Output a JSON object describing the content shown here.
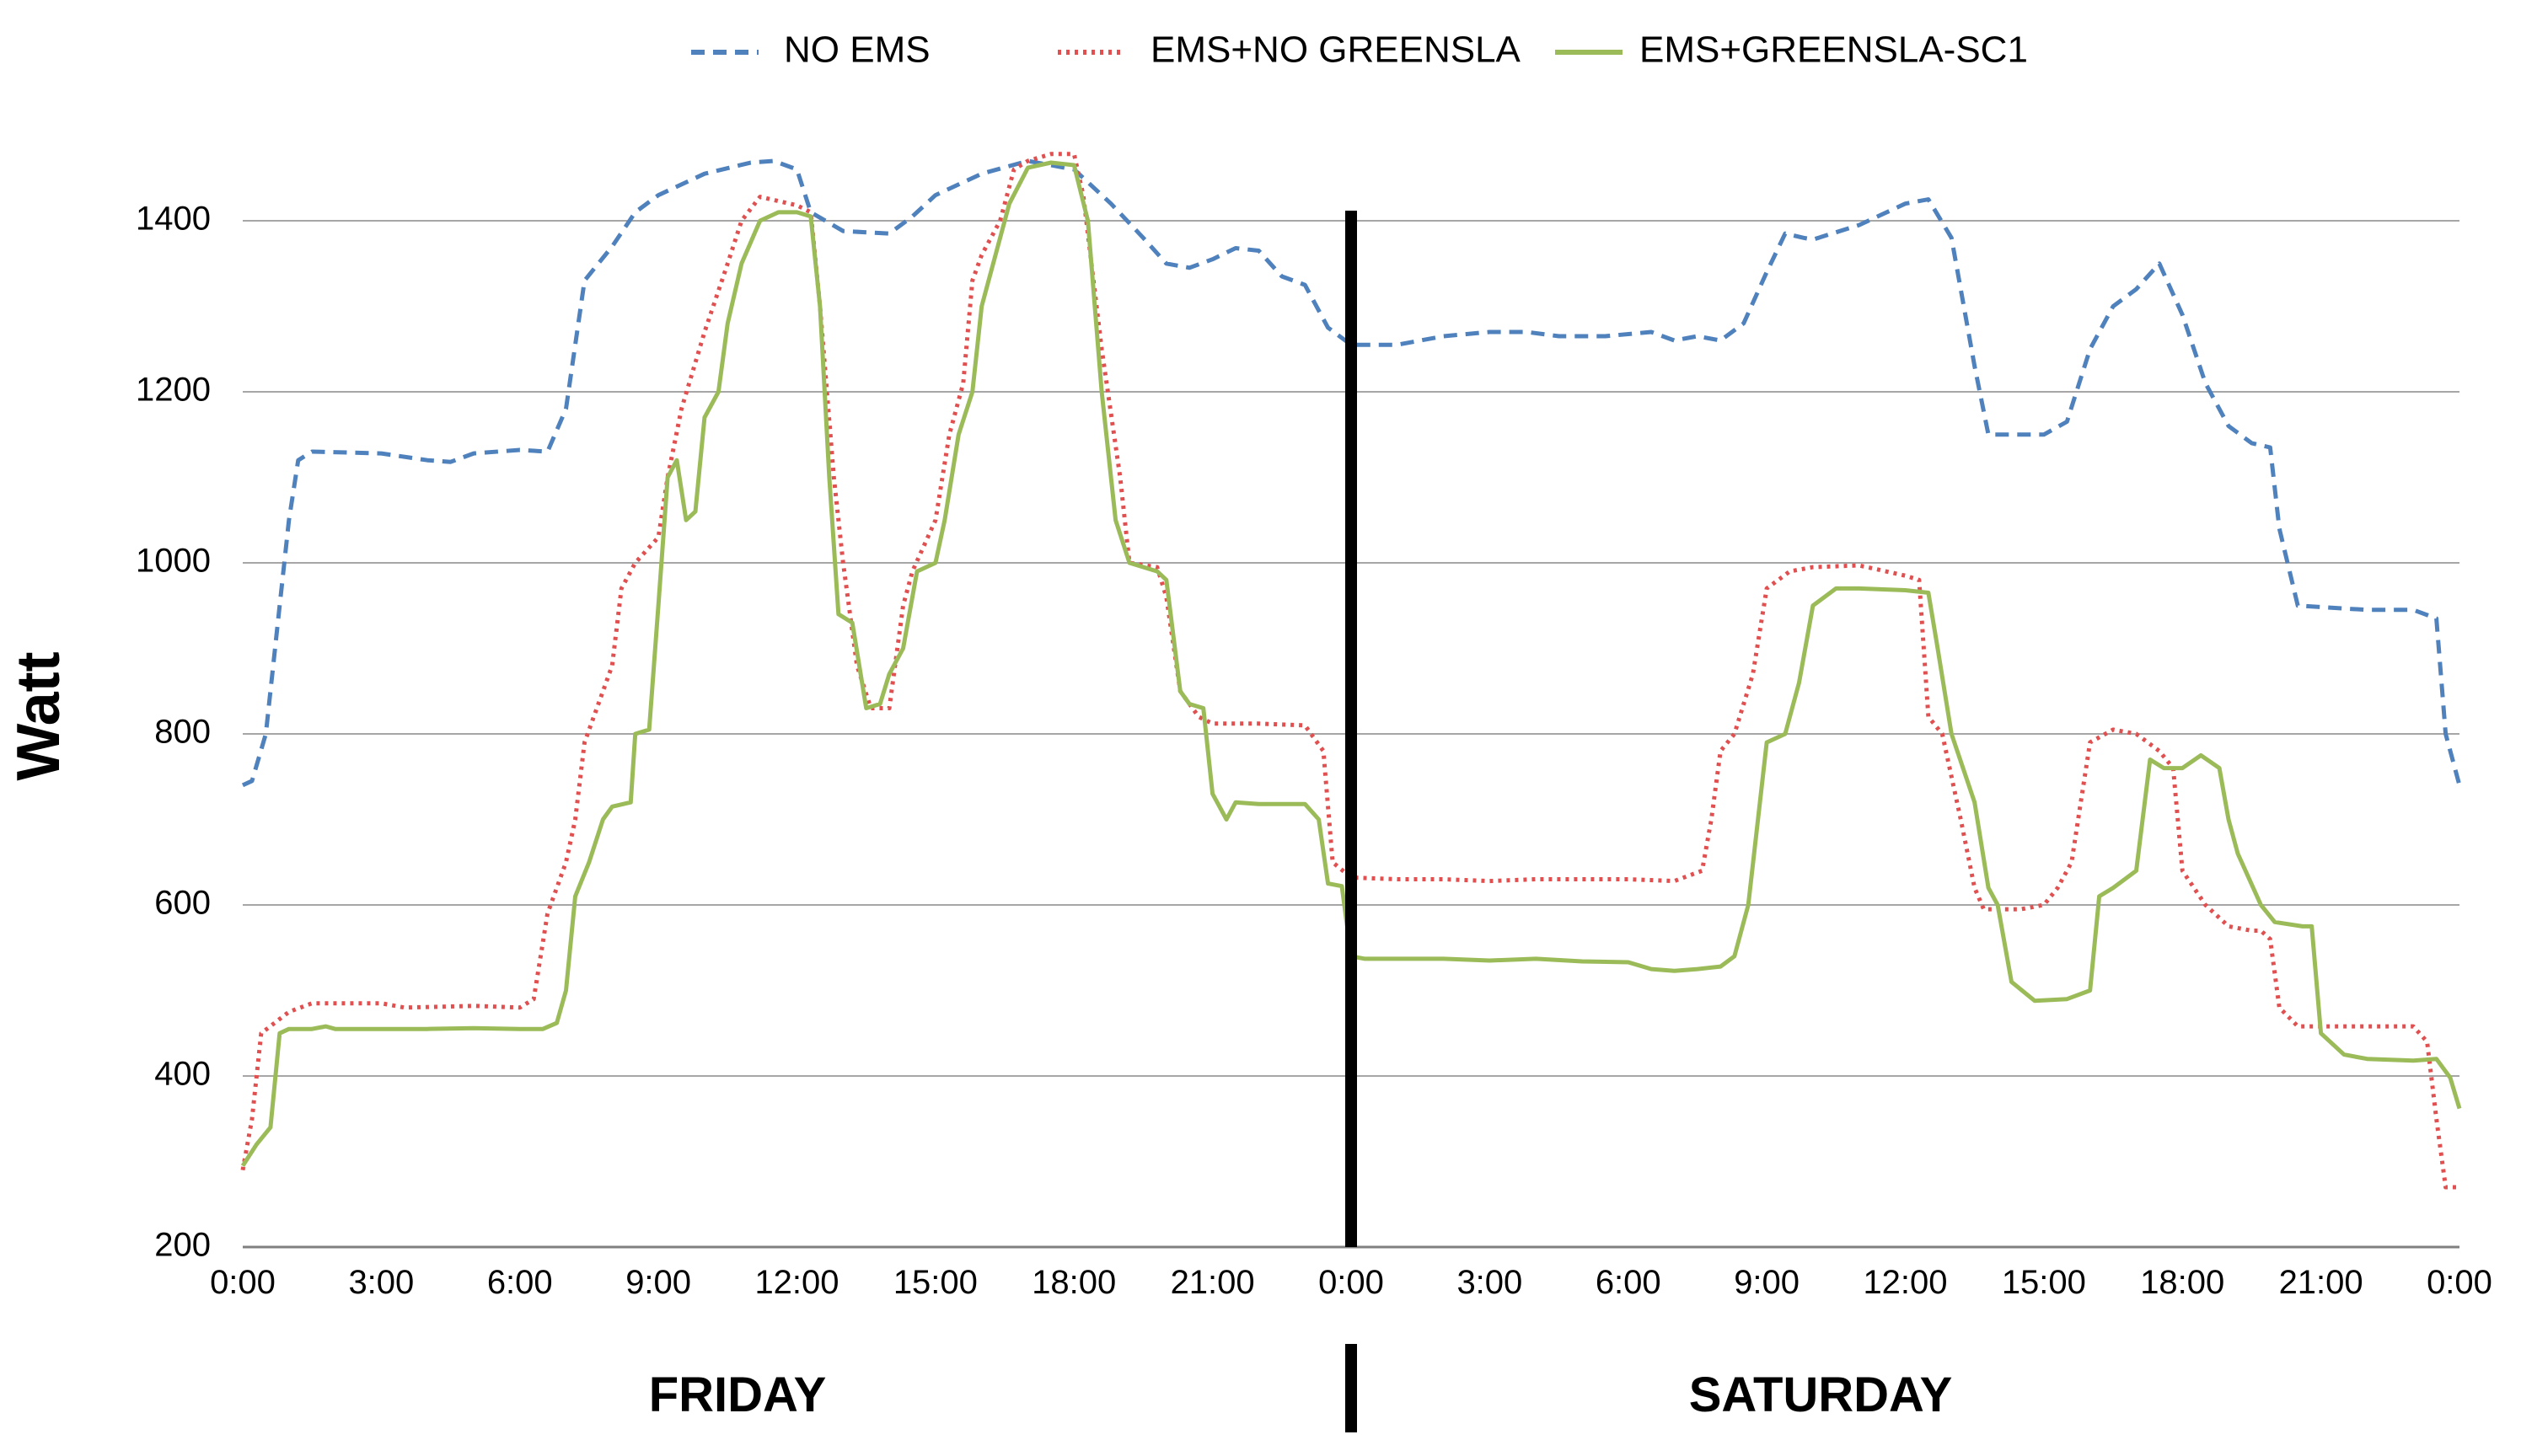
{
  "chart_data": {
    "type": "line",
    "ylabel": "Watt",
    "xlabel": "",
    "ylim": [
      200,
      1500
    ],
    "yticks": [
      200,
      400,
      600,
      800,
      1000,
      1200,
      1400
    ],
    "xlim": [
      0,
      48
    ],
    "xtick_hours": [
      0,
      3,
      6,
      9,
      12,
      15,
      18,
      21,
      24,
      27,
      30,
      33,
      36,
      39,
      42,
      45,
      48
    ],
    "xtick_labels": [
      "0:00",
      "3:00",
      "6:00",
      "9:00",
      "12:00",
      "15:00",
      "18:00",
      "21:00",
      "0:00",
      "3:00",
      "6:00",
      "9:00",
      "12:00",
      "15:00",
      "18:00",
      "21:00",
      "0:00"
    ],
    "day_labels": [
      "FRIDAY",
      "SATURDAY"
    ],
    "divider_hour": 24,
    "grid": true,
    "legend_position": "top",
    "series": [
      {
        "name": "NO EMS",
        "color": "#4F81BD",
        "style": "dashed",
        "points": [
          [
            0,
            740
          ],
          [
            0.2,
            745
          ],
          [
            0.5,
            800
          ],
          [
            0.8,
            950
          ],
          [
            1.0,
            1050
          ],
          [
            1.2,
            1120
          ],
          [
            1.5,
            1130
          ],
          [
            3,
            1128
          ],
          [
            4,
            1120
          ],
          [
            4.5,
            1118
          ],
          [
            5,
            1128
          ],
          [
            6,
            1132
          ],
          [
            6.6,
            1130
          ],
          [
            7.0,
            1180
          ],
          [
            7.4,
            1330
          ],
          [
            8,
            1370
          ],
          [
            8.5,
            1410
          ],
          [
            9,
            1430
          ],
          [
            10,
            1455
          ],
          [
            11,
            1468
          ],
          [
            11.5,
            1470
          ],
          [
            12,
            1460
          ],
          [
            12.3,
            1410
          ],
          [
            13,
            1388
          ],
          [
            14,
            1385
          ],
          [
            14.5,
            1405
          ],
          [
            15,
            1430
          ],
          [
            16,
            1455
          ],
          [
            17,
            1470
          ],
          [
            18,
            1460
          ],
          [
            18.8,
            1420
          ],
          [
            19.5,
            1380
          ],
          [
            20,
            1350
          ],
          [
            20.5,
            1345
          ],
          [
            21,
            1355
          ],
          [
            21.5,
            1368
          ],
          [
            22,
            1365
          ],
          [
            22.5,
            1335
          ],
          [
            23,
            1325
          ],
          [
            23.5,
            1275
          ],
          [
            24,
            1255
          ],
          [
            25,
            1255
          ],
          [
            26,
            1265
          ],
          [
            27,
            1270
          ],
          [
            27.8,
            1270
          ],
          [
            28.5,
            1265
          ],
          [
            29.5,
            1265
          ],
          [
            30.5,
            1270
          ],
          [
            31,
            1260
          ],
          [
            31.5,
            1265
          ],
          [
            32,
            1260
          ],
          [
            32.5,
            1280
          ],
          [
            33,
            1340
          ],
          [
            33.4,
            1385
          ],
          [
            33.8,
            1380
          ],
          [
            34,
            1378
          ],
          [
            35,
            1395
          ],
          [
            36,
            1420
          ],
          [
            36.5,
            1425
          ],
          [
            37,
            1380
          ],
          [
            37.5,
            1230
          ],
          [
            37.8,
            1150
          ],
          [
            39,
            1150
          ],
          [
            39.5,
            1165
          ],
          [
            40,
            1250
          ],
          [
            40.5,
            1300
          ],
          [
            41,
            1320
          ],
          [
            41.5,
            1350
          ],
          [
            42,
            1290
          ],
          [
            42.5,
            1210
          ],
          [
            43,
            1160
          ],
          [
            43.5,
            1140
          ],
          [
            43.9,
            1135
          ],
          [
            44.1,
            1040
          ],
          [
            44.5,
            950
          ],
          [
            46,
            945
          ],
          [
            47,
            945
          ],
          [
            47.5,
            935
          ],
          [
            47.7,
            800
          ],
          [
            48,
            740
          ]
        ]
      },
      {
        "name": "EMS+NO GREENSLA",
        "color": "#E05050",
        "style": "dotted",
        "points": [
          [
            0,
            290
          ],
          [
            0.2,
            350
          ],
          [
            0.4,
            450
          ],
          [
            1,
            475
          ],
          [
            1.5,
            485
          ],
          [
            3,
            485
          ],
          [
            3.5,
            480
          ],
          [
            5,
            482
          ],
          [
            6,
            480
          ],
          [
            6.3,
            490
          ],
          [
            6.6,
            590
          ],
          [
            7,
            650
          ],
          [
            7.2,
            700
          ],
          [
            7.4,
            790
          ],
          [
            7.8,
            850
          ],
          [
            8,
            880
          ],
          [
            8.2,
            970
          ],
          [
            8.5,
            1000
          ],
          [
            9,
            1030
          ],
          [
            9.2,
            1100
          ],
          [
            9.5,
            1180
          ],
          [
            10,
            1270
          ],
          [
            10.5,
            1350
          ],
          [
            10.8,
            1400
          ],
          [
            11.2,
            1428
          ],
          [
            12,
            1418
          ],
          [
            12.3,
            1410
          ],
          [
            12.5,
            1300
          ],
          [
            12.8,
            1100
          ],
          [
            13,
            1000
          ],
          [
            13.3,
            880
          ],
          [
            13.6,
            830
          ],
          [
            14,
            830
          ],
          [
            14.3,
            950
          ],
          [
            14.5,
            990
          ],
          [
            15,
            1050
          ],
          [
            15.3,
            1150
          ],
          [
            15.6,
            1210
          ],
          [
            15.8,
            1330
          ],
          [
            16,
            1360
          ],
          [
            16.4,
            1400
          ],
          [
            16.7,
            1460
          ],
          [
            17,
            1470
          ],
          [
            17.5,
            1478
          ],
          [
            18,
            1478
          ],
          [
            18.2,
            1430
          ],
          [
            18.6,
            1250
          ],
          [
            19,
            1100
          ],
          [
            19.2,
            1000
          ],
          [
            19.8,
            995
          ],
          [
            20,
            960
          ],
          [
            20.3,
            850
          ],
          [
            20.7,
            820
          ],
          [
            21,
            812
          ],
          [
            22,
            812
          ],
          [
            23,
            810
          ],
          [
            23.4,
            780
          ],
          [
            23.6,
            650
          ],
          [
            24,
            632
          ],
          [
            25,
            630
          ],
          [
            26,
            630
          ],
          [
            27,
            628
          ],
          [
            28,
            630
          ],
          [
            29,
            630
          ],
          [
            30,
            630
          ],
          [
            31,
            628
          ],
          [
            31.6,
            640
          ],
          [
            31.8,
            700
          ],
          [
            32,
            780
          ],
          [
            32.3,
            800
          ],
          [
            32.7,
            870
          ],
          [
            33,
            970
          ],
          [
            33.5,
            990
          ],
          [
            34,
            995
          ],
          [
            35,
            997
          ],
          [
            36,
            985
          ],
          [
            36.3,
            980
          ],
          [
            36.5,
            820
          ],
          [
            36.8,
            800
          ],
          [
            37.2,
            700
          ],
          [
            37.5,
            620
          ],
          [
            37.7,
            595
          ],
          [
            38.5,
            595
          ],
          [
            39,
            600
          ],
          [
            39.3,
            620
          ],
          [
            39.6,
            650
          ],
          [
            39.8,
            720
          ],
          [
            40,
            790
          ],
          [
            40.5,
            805
          ],
          [
            41,
            800
          ],
          [
            41.5,
            780
          ],
          [
            41.8,
            760
          ],
          [
            42,
            640
          ],
          [
            42.5,
            600
          ],
          [
            43,
            575
          ],
          [
            43.5,
            570
          ],
          [
            43.7,
            570
          ],
          [
            43.9,
            560
          ],
          [
            44.1,
            480
          ],
          [
            44.5,
            458
          ],
          [
            45.5,
            458
          ],
          [
            46.5,
            458
          ],
          [
            47,
            458
          ],
          [
            47.3,
            440
          ],
          [
            47.5,
            350
          ],
          [
            47.7,
            270
          ],
          [
            48,
            270
          ]
        ]
      },
      {
        "name": "EMS+GREENSLA-SC1",
        "color": "#9BBB59",
        "style": "solid",
        "points": [
          [
            0,
            295
          ],
          [
            0.3,
            320
          ],
          [
            0.6,
            340
          ],
          [
            0.8,
            450
          ],
          [
            1,
            455
          ],
          [
            1.5,
            455
          ],
          [
            1.8,
            458
          ],
          [
            2,
            455
          ],
          [
            3,
            455
          ],
          [
            4,
            455
          ],
          [
            5,
            456
          ],
          [
            6,
            455
          ],
          [
            6.5,
            455
          ],
          [
            6.8,
            462
          ],
          [
            7,
            500
          ],
          [
            7.2,
            610
          ],
          [
            7.5,
            650
          ],
          [
            7.8,
            700
          ],
          [
            8,
            715
          ],
          [
            8.4,
            720
          ],
          [
            8.5,
            800
          ],
          [
            8.8,
            805
          ],
          [
            9.0,
            950
          ],
          [
            9.2,
            1100
          ],
          [
            9.4,
            1120
          ],
          [
            9.6,
            1050
          ],
          [
            9.8,
            1060
          ],
          [
            10,
            1170
          ],
          [
            10.3,
            1200
          ],
          [
            10.5,
            1280
          ],
          [
            10.8,
            1350
          ],
          [
            11.2,
            1400
          ],
          [
            11.6,
            1410
          ],
          [
            12,
            1410
          ],
          [
            12.3,
            1405
          ],
          [
            12.5,
            1300
          ],
          [
            12.7,
            1100
          ],
          [
            12.9,
            940
          ],
          [
            13.2,
            930
          ],
          [
            13.5,
            830
          ],
          [
            13.8,
            835
          ],
          [
            14,
            870
          ],
          [
            14.3,
            900
          ],
          [
            14.6,
            990
          ],
          [
            15,
            1000
          ],
          [
            15.2,
            1050
          ],
          [
            15.5,
            1150
          ],
          [
            15.8,
            1200
          ],
          [
            16,
            1300
          ],
          [
            16.3,
            1360
          ],
          [
            16.6,
            1420
          ],
          [
            17,
            1462
          ],
          [
            17.5,
            1468
          ],
          [
            18,
            1465
          ],
          [
            18.3,
            1400
          ],
          [
            18.6,
            1200
          ],
          [
            18.9,
            1050
          ],
          [
            19.2,
            1000
          ],
          [
            19.8,
            990
          ],
          [
            20,
            980
          ],
          [
            20.3,
            850
          ],
          [
            20.5,
            835
          ],
          [
            20.8,
            830
          ],
          [
            21.0,
            730
          ],
          [
            21.3,
            700
          ],
          [
            21.5,
            720
          ],
          [
            22,
            718
          ],
          [
            23,
            718
          ],
          [
            23.3,
            700
          ],
          [
            23.5,
            625
          ],
          [
            23.8,
            622
          ],
          [
            24,
            540
          ],
          [
            24.3,
            537
          ],
          [
            25,
            537
          ],
          [
            26,
            537
          ],
          [
            27,
            535
          ],
          [
            28,
            537
          ],
          [
            29,
            534
          ],
          [
            30,
            533
          ],
          [
            30.5,
            525
          ],
          [
            31,
            523
          ],
          [
            31.5,
            525
          ],
          [
            32,
            528
          ],
          [
            32.3,
            540
          ],
          [
            32.6,
            600
          ],
          [
            33,
            790
          ],
          [
            33.4,
            800
          ],
          [
            33.7,
            860
          ],
          [
            34,
            950
          ],
          [
            34.5,
            970
          ],
          [
            35,
            970
          ],
          [
            36,
            968
          ],
          [
            36.5,
            965
          ],
          [
            36.7,
            900
          ],
          [
            37,
            800
          ],
          [
            37.5,
            720
          ],
          [
            37.8,
            620
          ],
          [
            38,
            600
          ],
          [
            38.3,
            510
          ],
          [
            38.8,
            488
          ],
          [
            39.5,
            490
          ],
          [
            40,
            500
          ],
          [
            40.2,
            610
          ],
          [
            40.5,
            620
          ],
          [
            41,
            640
          ],
          [
            41.3,
            770
          ],
          [
            41.6,
            760
          ],
          [
            42,
            760
          ],
          [
            42.4,
            775
          ],
          [
            42.8,
            760
          ],
          [
            43,
            700
          ],
          [
            43.2,
            660
          ],
          [
            43.7,
            600
          ],
          [
            44,
            580
          ],
          [
            44.6,
            575
          ],
          [
            44.8,
            575
          ],
          [
            45.0,
            450
          ],
          [
            45.5,
            425
          ],
          [
            46,
            420
          ],
          [
            47,
            418
          ],
          [
            47.5,
            420
          ],
          [
            47.8,
            398
          ],
          [
            48,
            362
          ]
        ]
      }
    ]
  }
}
